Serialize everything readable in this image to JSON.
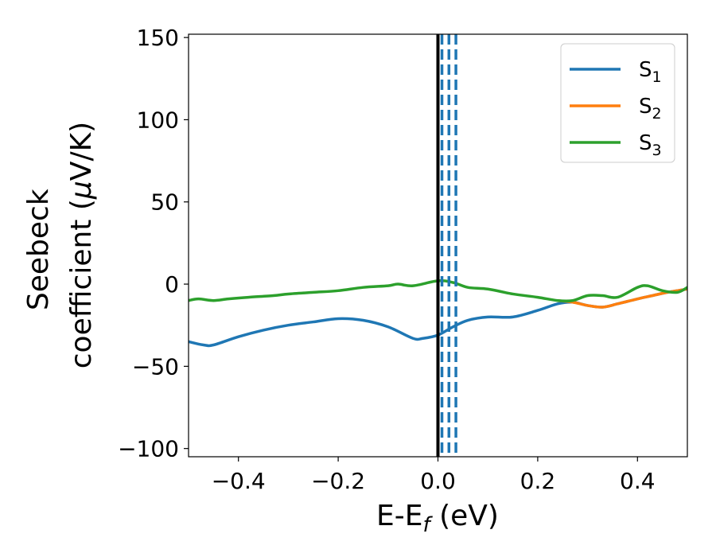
{
  "chart_data": {
    "type": "line",
    "title": "",
    "xlabel": {
      "main": "E-E",
      "sub": "f",
      "unit": " (eV)"
    },
    "ylabel": {
      "line1": "Seebeck",
      "line2": "coefficient  (",
      "mu": "μ",
      "unit": "V/K)"
    },
    "xlim": [
      -0.5,
      0.5
    ],
    "ylim": [
      -105,
      152
    ],
    "xticks": [
      -0.4,
      -0.2,
      0.0,
      0.2,
      0.4
    ],
    "xtick_labels": [
      "−0.4",
      "−0.2",
      "0.0",
      "0.2",
      "0.4"
    ],
    "yticks": [
      150,
      100,
      50,
      0,
      -50,
      -100
    ],
    "ytick_labels": [
      "150",
      "100",
      "50",
      "0",
      "−50",
      "−100"
    ],
    "grid": false,
    "legend_position": "top-right",
    "vertical_lines": [
      {
        "x": 0.0,
        "style": "solid",
        "color": "#000000"
      },
      {
        "x": 0.008,
        "style": "dashed",
        "color": "#1f77b4"
      },
      {
        "x": 0.022,
        "style": "dashed",
        "color": "#1f77b4"
      },
      {
        "x": 0.036,
        "style": "dashed",
        "color": "#1f77b4"
      }
    ],
    "series": [
      {
        "name": "S",
        "sub": "1",
        "color": "#1f77b4",
        "x": [
          -0.5,
          -0.47,
          -0.45,
          -0.4,
          -0.35,
          -0.3,
          -0.25,
          -0.2,
          -0.15,
          -0.1,
          -0.05,
          -0.03,
          0.0,
          0.03,
          0.06,
          0.1,
          0.15,
          0.2,
          0.24,
          0.27,
          0.3,
          0.33,
          0.36,
          0.4,
          0.43,
          0.46,
          0.5
        ],
        "y": [
          -35,
          -37,
          -37,
          -32,
          -28,
          -25,
          -23,
          -21,
          -22,
          -26,
          -33,
          -33,
          -31,
          -26,
          -22,
          -20,
          -20,
          -16,
          -12,
          -11,
          -13,
          -14,
          -12,
          -9,
          -7,
          -5,
          -3
        ]
      },
      {
        "name": "S",
        "sub": "2",
        "color": "#ff7f0e",
        "x": [
          0.24,
          0.27,
          0.3,
          0.33,
          0.36,
          0.4,
          0.43,
          0.46,
          0.5
        ],
        "y": [
          -10,
          -11,
          -13,
          -14,
          -12,
          -9,
          -7,
          -5,
          -3
        ]
      },
      {
        "name": "S",
        "sub": "3",
        "color": "#2ca02c",
        "x": [
          -0.5,
          -0.48,
          -0.45,
          -0.42,
          -0.38,
          -0.33,
          -0.3,
          -0.25,
          -0.2,
          -0.15,
          -0.1,
          -0.08,
          -0.05,
          0.0,
          0.03,
          0.06,
          0.1,
          0.15,
          0.2,
          0.24,
          0.27,
          0.3,
          0.33,
          0.36,
          0.4,
          0.42,
          0.45,
          0.48,
          0.5
        ],
        "y": [
          -10,
          -9,
          -10,
          -9,
          -8,
          -7,
          -6,
          -5,
          -4,
          -2,
          -1,
          0,
          -1,
          2,
          1,
          -2,
          -3,
          -6,
          -8,
          -10,
          -10,
          -7,
          -7,
          -8,
          -2,
          -1,
          -4,
          -5,
          -2
        ]
      }
    ]
  }
}
